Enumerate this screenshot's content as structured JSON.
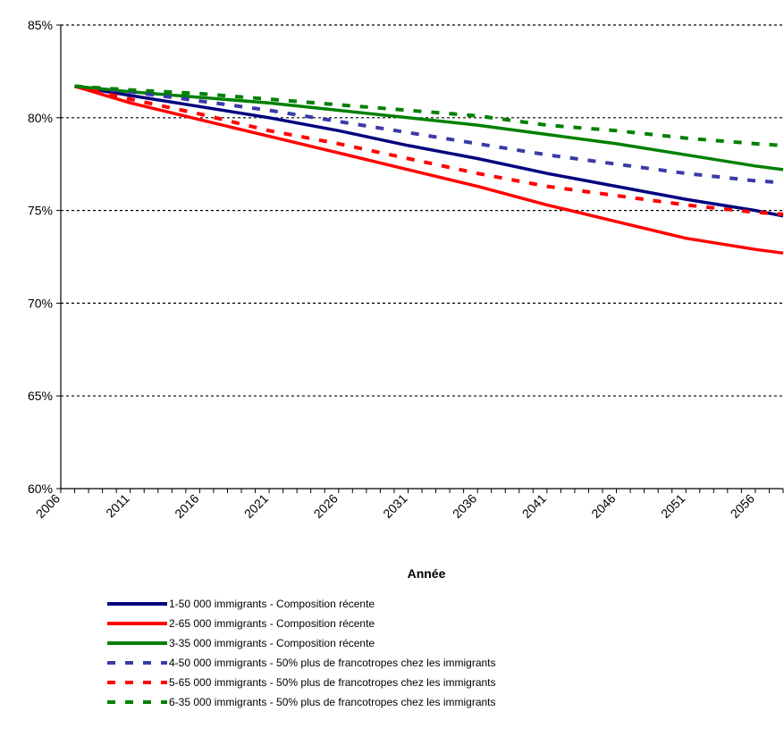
{
  "chart_data": {
    "type": "line",
    "title": "",
    "xlabel": "Année",
    "ylabel": "",
    "xlim": [
      2006,
      2058
    ],
    "ylim": [
      60,
      85
    ],
    "x_ticks": [
      "2006",
      "2011",
      "2016",
      "2021",
      "2026",
      "2031",
      "2036",
      "2041",
      "2046",
      "2051",
      "2056"
    ],
    "y_ticks": [
      "60%",
      "65%",
      "70%",
      "75%",
      "80%",
      "85%"
    ],
    "grid": "horizontal dashed",
    "legend_position": "bottom",
    "x": [
      2007,
      2011,
      2016,
      2021,
      2026,
      2031,
      2036,
      2041,
      2046,
      2051,
      2056,
      2058
    ],
    "series": [
      {
        "name": "1-50 000 immigrants - Composition récente",
        "style": "solid",
        "color": "#00007f",
        "values": [
          81.7,
          81.2,
          80.6,
          80.0,
          79.3,
          78.5,
          77.8,
          77.0,
          76.3,
          75.6,
          75.0,
          74.7
        ]
      },
      {
        "name": "2-65 000 immigrants - Composition récente",
        "style": "solid",
        "color": "#ff0000",
        "values": [
          81.7,
          80.8,
          79.9,
          79.0,
          78.1,
          77.2,
          76.3,
          75.3,
          74.4,
          73.5,
          72.9,
          72.7
        ]
      },
      {
        "name": "3-35 000 immigrants - Composition récente",
        "style": "solid",
        "color": "#008000",
        "values": [
          81.7,
          81.4,
          81.1,
          80.8,
          80.4,
          80.0,
          79.6,
          79.1,
          78.6,
          78.0,
          77.4,
          77.2
        ]
      },
      {
        "name": "4-50 000 immigrants - 50% plus de francotropes chez les immigrants",
        "style": "dashed",
        "color": "#3a3aa8",
        "values": [
          81.7,
          81.4,
          80.9,
          80.4,
          79.8,
          79.2,
          78.6,
          78.0,
          77.5,
          77.0,
          76.6,
          76.5
        ]
      },
      {
        "name": "5-65 000 immigrants - 50% plus de francotropes chez les immigrants",
        "style": "dashed",
        "color": "#ff0000",
        "values": [
          81.7,
          81.0,
          80.2,
          79.3,
          78.6,
          77.8,
          77.0,
          76.3,
          75.8,
          75.3,
          74.9,
          74.8
        ]
      },
      {
        "name": "6-35 000 immigrants - 50% plus de francotropes chez les immigrants",
        "style": "dashed",
        "color": "#008000",
        "values": [
          81.7,
          81.5,
          81.3,
          81.0,
          80.7,
          80.4,
          80.1,
          79.6,
          79.3,
          78.9,
          78.6,
          78.5
        ]
      }
    ]
  }
}
